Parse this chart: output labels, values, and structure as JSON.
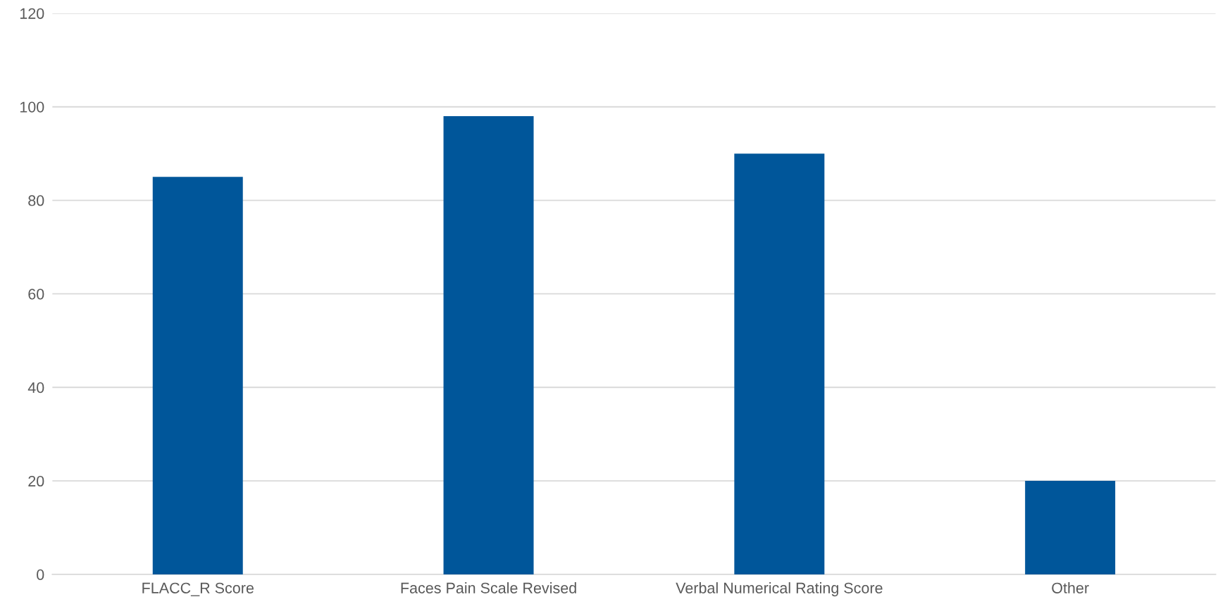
{
  "chart_data": {
    "type": "bar",
    "categories": [
      "FLACC_R Score",
      "Faces Pain Scale Revised",
      "Verbal Numerical Rating Score",
      "Other"
    ],
    "values": [
      85,
      98,
      90,
      20
    ],
    "color": "#00569a",
    "ylim": [
      0,
      120
    ],
    "yticks": [
      0,
      20,
      40,
      60,
      80,
      100,
      120
    ],
    "grid": "y",
    "legend": false
  }
}
